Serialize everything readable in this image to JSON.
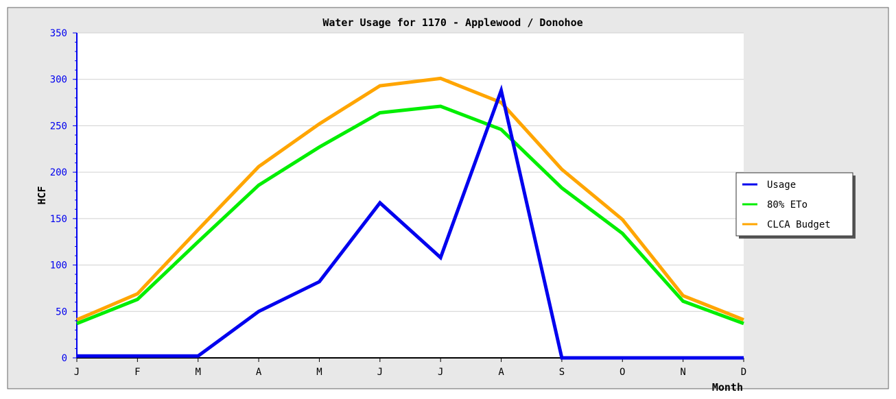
{
  "chart_data": {
    "type": "line",
    "title": "Water Usage for 1170 - Applewood / Donohoe",
    "xlabel": "Month",
    "ylabel": "HCF",
    "categories": [
      "J",
      "F",
      "M",
      "A",
      "M",
      "J",
      "J",
      "A",
      "S",
      "O",
      "N",
      "D"
    ],
    "ylim": [
      0,
      350
    ],
    "yticks": [
      0,
      50,
      100,
      150,
      200,
      250,
      300,
      350
    ],
    "grid": true,
    "legend_position": "right",
    "series": [
      {
        "name": "Usage",
        "color": "#0000ee",
        "values": [
          2,
          2,
          2,
          50,
          82,
          167,
          108,
          288,
          0,
          0,
          0,
          0
        ]
      },
      {
        "name": "80% ETo",
        "color": "#00ee00",
        "values": [
          37,
          63,
          125,
          186,
          227,
          264,
          271,
          246,
          183,
          134,
          61,
          37
        ]
      },
      {
        "name": "CLCA Budget",
        "color": "#ffa500",
        "values": [
          41,
          69,
          138,
          206,
          252,
          293,
          301,
          275,
          203,
          149,
          67,
          41
        ]
      }
    ]
  }
}
